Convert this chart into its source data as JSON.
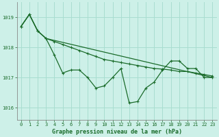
{
  "title": "Graphe pression niveau de la mer (hPa)",
  "bg_color": "#cdf0e8",
  "grid_color": "#a8ddd0",
  "line_color": "#1a6b2a",
  "spine_color": "#888888",
  "xlim": [
    -0.5,
    23.5
  ],
  "ylim": [
    1015.6,
    1019.5
  ],
  "yticks": [
    1016,
    1017,
    1018,
    1019
  ],
  "xticks": [
    0,
    1,
    2,
    3,
    4,
    5,
    6,
    7,
    8,
    9,
    10,
    11,
    12,
    13,
    14,
    15,
    16,
    17,
    18,
    19,
    20,
    21,
    22,
    23
  ],
  "series1_x": [
    0,
    1,
    2,
    3,
    4,
    5,
    6,
    7,
    8,
    9,
    10,
    11,
    12,
    13,
    14,
    15,
    16,
    17,
    18,
    19,
    20,
    21,
    22,
    23
  ],
  "series1_y": [
    1018.7,
    1019.1,
    1018.55,
    1018.3,
    1017.75,
    1017.15,
    1017.25,
    1017.25,
    1017.0,
    1016.65,
    1016.72,
    1017.0,
    1017.3,
    1016.15,
    1016.2,
    1016.65,
    1016.85,
    1017.25,
    1017.55,
    1017.55,
    1017.3,
    1017.3,
    1017.0,
    1017.0
  ],
  "series2_x": [
    0,
    1,
    2,
    3,
    23
  ],
  "series2_y": [
    1018.7,
    1019.1,
    1018.55,
    1018.3,
    1017.0
  ],
  "series3_x": [
    0,
    1,
    2,
    3,
    4,
    5,
    6,
    7,
    8,
    9,
    10,
    11,
    12,
    13,
    14,
    15,
    16,
    17,
    18,
    19,
    20,
    21,
    22,
    23
  ],
  "series3_y": [
    1018.7,
    1019.1,
    1018.55,
    1018.3,
    1018.2,
    1018.1,
    1018.0,
    1017.9,
    1017.8,
    1017.7,
    1017.6,
    1017.55,
    1017.5,
    1017.45,
    1017.4,
    1017.35,
    1017.3,
    1017.28,
    1017.25,
    1017.2,
    1017.2,
    1017.15,
    1017.1,
    1017.05
  ],
  "xlabel_fontsize": 6.0,
  "tick_fontsize": 5.0
}
